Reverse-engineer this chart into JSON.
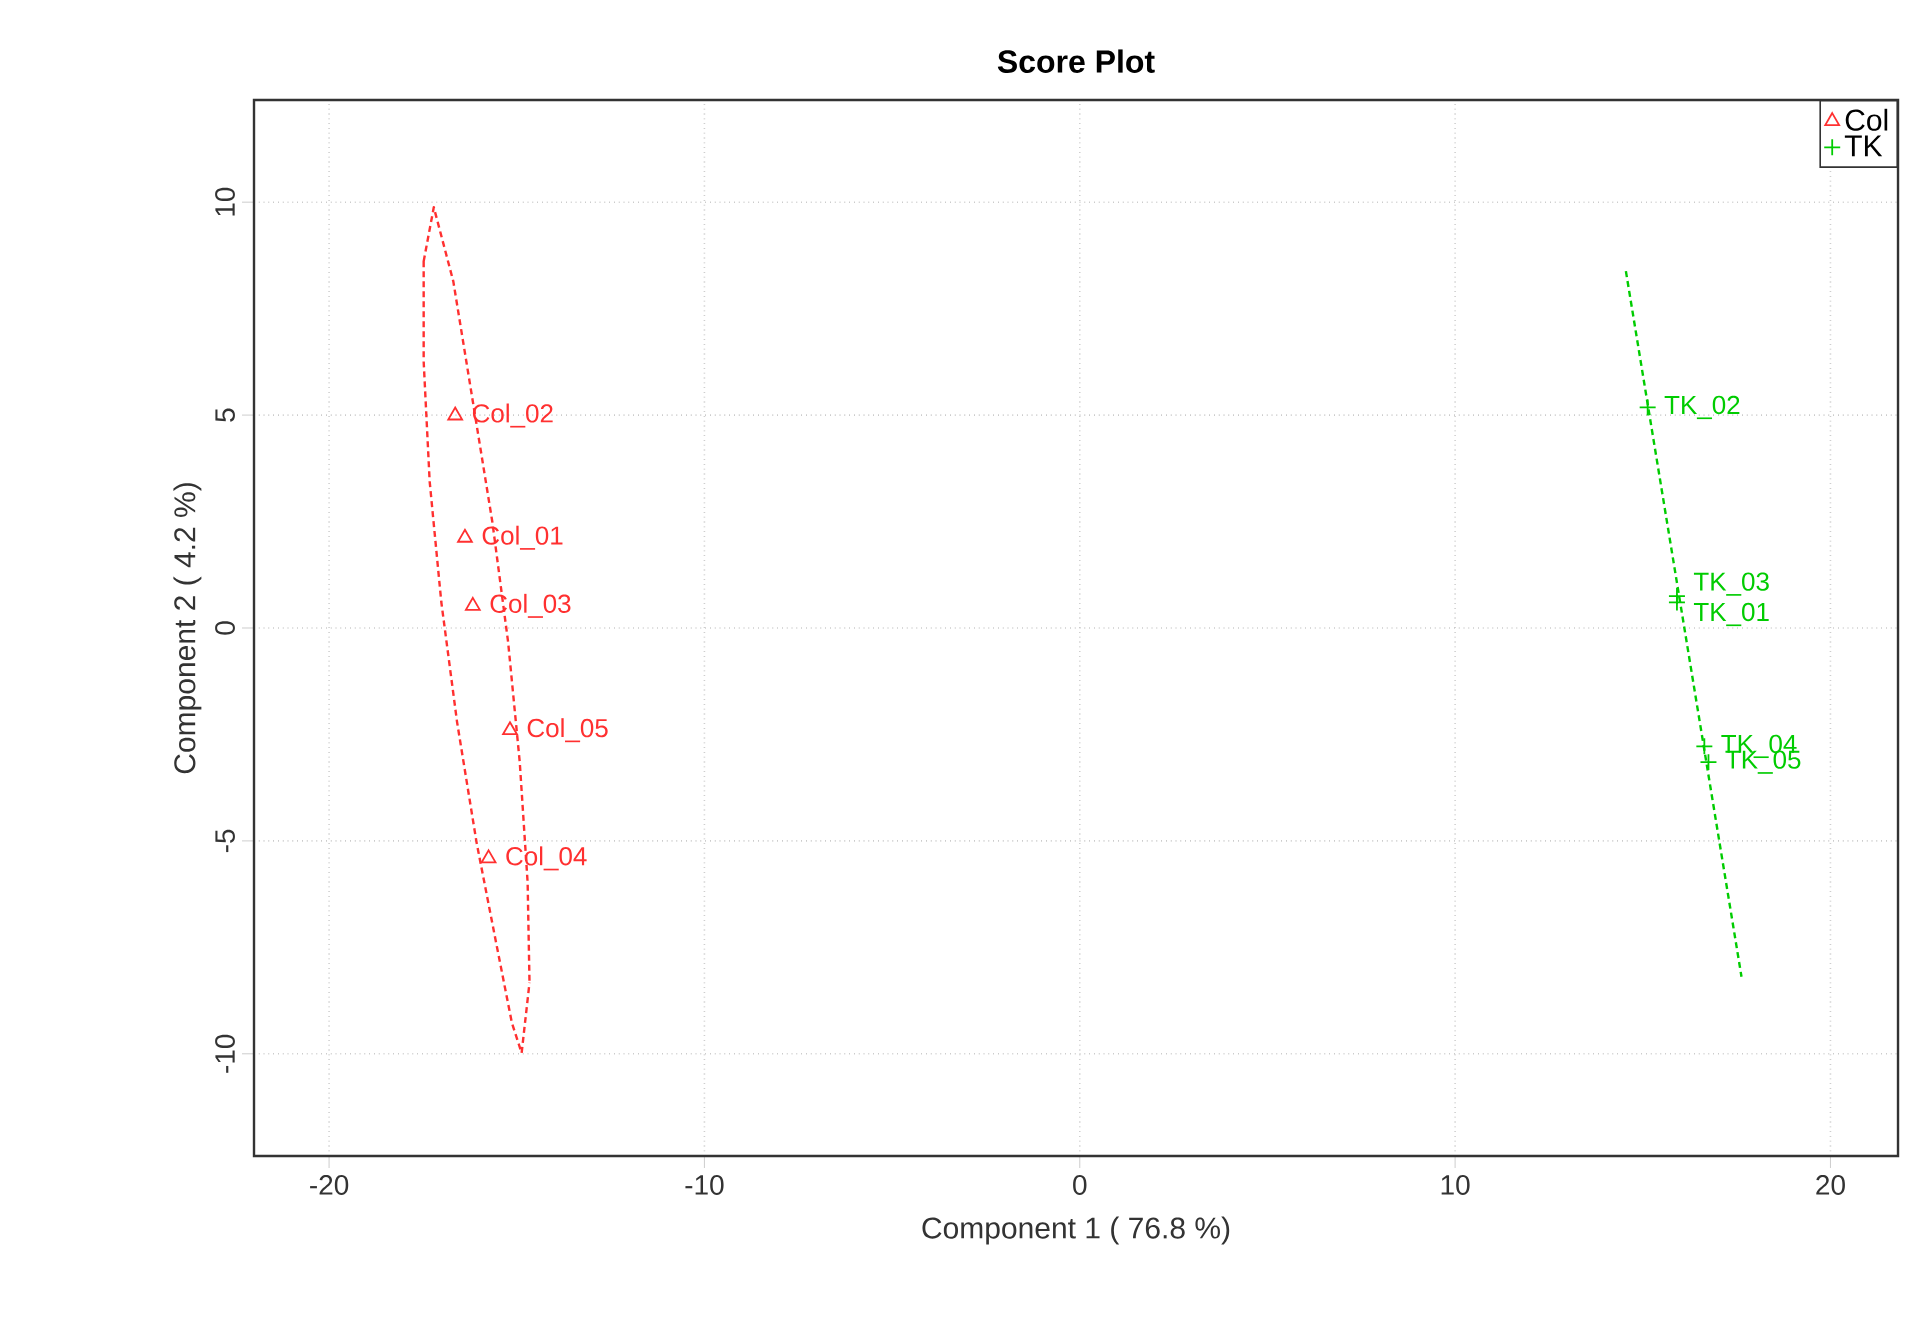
{
  "chart_data": {
    "type": "scatter",
    "title": "Score Plot",
    "xlabel": "Component 1 ( 76.8 %)",
    "ylabel": "Component 2 ( 4.2 %)",
    "xlim": [
      -22,
      21.8
    ],
    "ylim": [
      -12.4,
      12.4
    ],
    "xticks": [
      -20,
      -10,
      0,
      10,
      20
    ],
    "yticks": [
      -10,
      -5,
      0,
      5,
      10
    ],
    "grid": true,
    "legend": "top right",
    "series": [
      {
        "name": "Col",
        "color": "#ff3030",
        "marker": "triangle",
        "x": [
          -16.38,
          -16.64,
          -16.17,
          -15.75,
          -15.18
        ],
        "values": [
          2.12,
          4.99,
          0.52,
          -5.41,
          -2.4
        ]
      },
      {
        "name": "TK",
        "color": "#00cc00",
        "marker": "cross",
        "x": [
          15.91,
          15.13,
          15.91,
          16.64,
          16.75
        ],
        "values": [
          0.6,
          5.18,
          0.75,
          -2.78,
          -3.15
        ]
      },
      {
        "type": "line",
        "color": "#ff3030",
        "line_style": "dashed",
        "marker": "none",
        "x": [
          -17.48,
          -17.21,
          -16.69,
          -16.17,
          -15.65,
          -15.23,
          -14.92,
          -14.71,
          -14.66,
          null,
          -17.48,
          -17.48,
          -17.32,
          -17.01,
          -16.59,
          -16.07,
          -15.55,
          -15.13,
          -14.87,
          -14.66
        ],
        "values": [
          8.61,
          9.88,
          8.14,
          5.32,
          2.49,
          -0.33,
          -3.15,
          -5.98,
          -8.33,
          null,
          8.61,
          6.26,
          3.44,
          0.61,
          -2.21,
          -5.04,
          -7.39,
          -9.27,
          -9.98,
          -8.33
        ]
      },
      {
        "type": "line",
        "color": "#00cc00",
        "line_style": "dashed",
        "marker": "none",
        "x": [
          14.55,
          17.63
        ],
        "values": [
          8.38,
          -8.19
        ]
      }
    ],
    "annotations": [
      {
        "text": "Col_01",
        "x": -16.38,
        "y": 2.12
      },
      {
        "text": "Col_02",
        "x": -16.64,
        "y": 4.99
      },
      {
        "text": "Col_03",
        "x": -16.17,
        "y": 0.52
      },
      {
        "text": "Col_04",
        "x": -15.75,
        "y": -5.41
      },
      {
        "text": "Col_05",
        "x": -15.18,
        "y": -2.4
      },
      {
        "text": "TK_01",
        "x": 15.91,
        "y": 0.6
      },
      {
        "text": "TK_02",
        "x": 15.13,
        "y": 5.18
      },
      {
        "text": "TK_03",
        "x": 15.91,
        "y": 0.75
      },
      {
        "text": "TK_04",
        "x": 16.64,
        "y": -2.78
      },
      {
        "text": "TK_05",
        "x": 16.75,
        "y": -3.15
      }
    ]
  }
}
